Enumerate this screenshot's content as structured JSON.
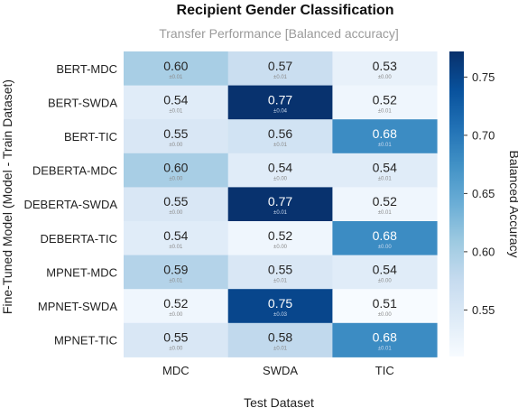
{
  "colors": {
    "scale_low": "#f7fbff",
    "scale_high": "#08306b",
    "subtitle": "#9a9a9a"
  },
  "chart_data": {
    "type": "heatmap",
    "title": "Recipient Gender Classification",
    "subtitle": "Transfer Performance [Balanced accuracy]",
    "xlabel": "Test Dataset",
    "ylabel": "Fine-Tuned Model (Model - Train Dataset)",
    "colorbar_label": "Balanced Accuracy",
    "colormap": "Blues",
    "vmin": 0.51,
    "vmax": 0.772,
    "colorbar_ticks": [
      0.55,
      0.6,
      0.65,
      0.7,
      0.75
    ],
    "columns": [
      "MDC",
      "SWDA",
      "TIC"
    ],
    "rows": [
      "BERT-MDC",
      "BERT-SWDA",
      "BERT-TIC",
      "DEBERTA-MDC",
      "DEBERTA-SWDA",
      "DEBERTA-TIC",
      "MPNET-MDC",
      "MPNET-SWDA",
      "MPNET-TIC"
    ],
    "values": [
      [
        0.6,
        0.57,
        0.53
      ],
      [
        0.54,
        0.77,
        0.52
      ],
      [
        0.55,
        0.56,
        0.68
      ],
      [
        0.6,
        0.54,
        0.54
      ],
      [
        0.55,
        0.77,
        0.52
      ],
      [
        0.54,
        0.52,
        0.68
      ],
      [
        0.59,
        0.55,
        0.54
      ],
      [
        0.52,
        0.75,
        0.51
      ],
      [
        0.55,
        0.58,
        0.68
      ]
    ],
    "std_labels": [
      [
        "±0.01",
        "±0.01",
        "±0.00"
      ],
      [
        "±0.01",
        "±0.04",
        "±0.01"
      ],
      [
        "±0.00",
        "±0.01",
        "±0.01"
      ],
      [
        "±0.00",
        "±0.00",
        "±0.01"
      ],
      [
        "±0.00",
        "±0.01",
        "±0.01"
      ],
      [
        "±0.01",
        "±0.00",
        "±0.00"
      ],
      [
        "±0.01",
        "±0.01",
        "±0.00"
      ],
      [
        "±0.00",
        "±0.03",
        "±0.00"
      ],
      [
        "±0.00",
        "±0.01",
        "±0.01"
      ]
    ]
  }
}
